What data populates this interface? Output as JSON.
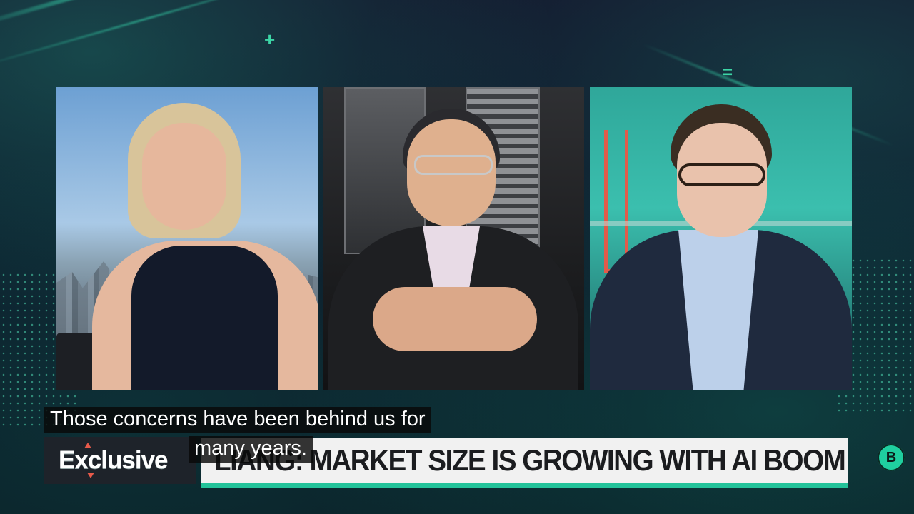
{
  "video": {
    "panels": [
      {
        "label": "anchor-left"
      },
      {
        "label": "guest-center"
      },
      {
        "label": "anchor-right"
      }
    ]
  },
  "lower_third": {
    "tag": "Exclusive",
    "headline": "LIANG: MARKET SIZE IS GROWING WITH AI BOOM"
  },
  "captions": {
    "line1": "Those concerns have been behind us for",
    "line2": "many years."
  },
  "channel_badge": {
    "letter": "B"
  },
  "colors": {
    "accent": "#23c39a",
    "headline_bg": "#f1f1f1",
    "tag_bg": "#1e232a"
  }
}
